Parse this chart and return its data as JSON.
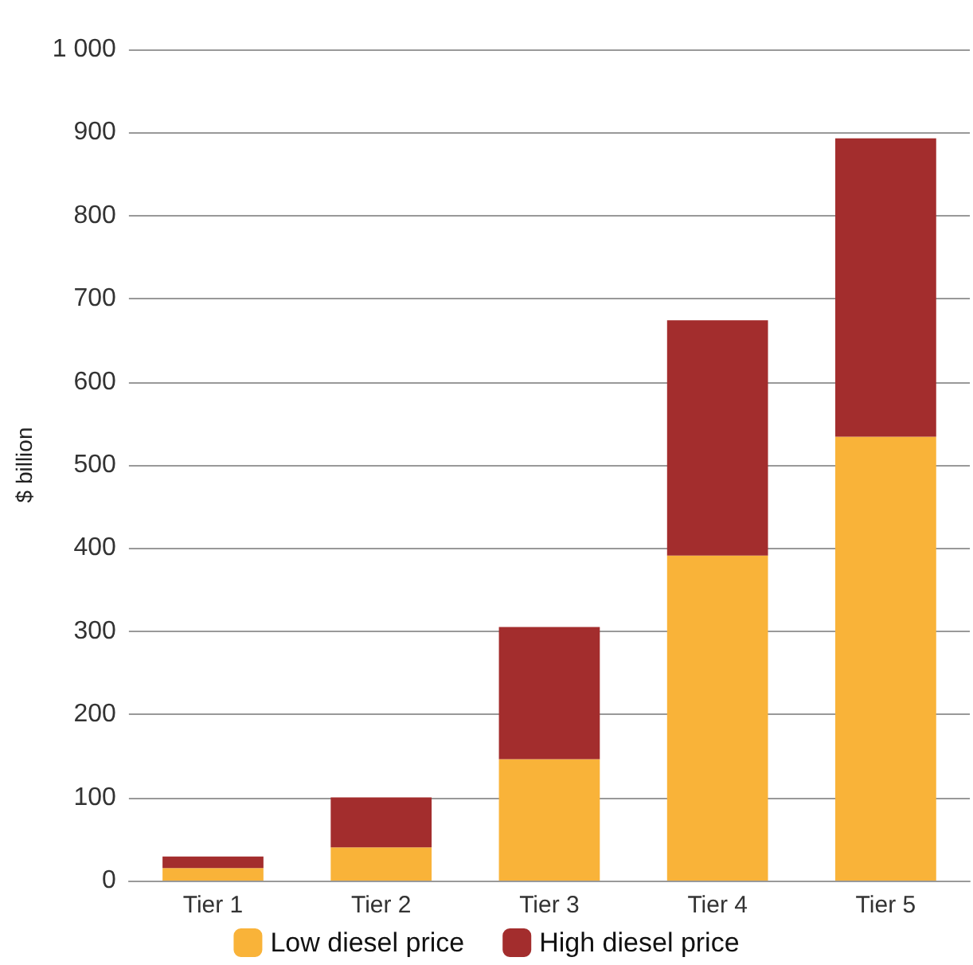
{
  "chart_data": {
    "type": "bar",
    "stacked": true,
    "ylabel": "$ billion",
    "categories": [
      "Tier 1",
      "Tier 2",
      "Tier 3",
      "Tier 4",
      "Tier 5"
    ],
    "series": [
      {
        "name": "Low diesel price",
        "color": "#f9b339",
        "values": [
          15,
          40,
          146,
          391,
          534
        ]
      },
      {
        "name": "High diesel price",
        "color": "#a32d2d",
        "values": [
          14,
          60,
          159,
          283,
          359
        ]
      }
    ],
    "ylim": [
      0,
      1000
    ],
    "yticks": [
      0,
      100,
      200,
      300,
      400,
      500,
      600,
      700,
      800,
      900,
      {
        "value": 1000,
        "label": "1 000"
      }
    ],
    "grid": "y",
    "legend": "bottom"
  }
}
